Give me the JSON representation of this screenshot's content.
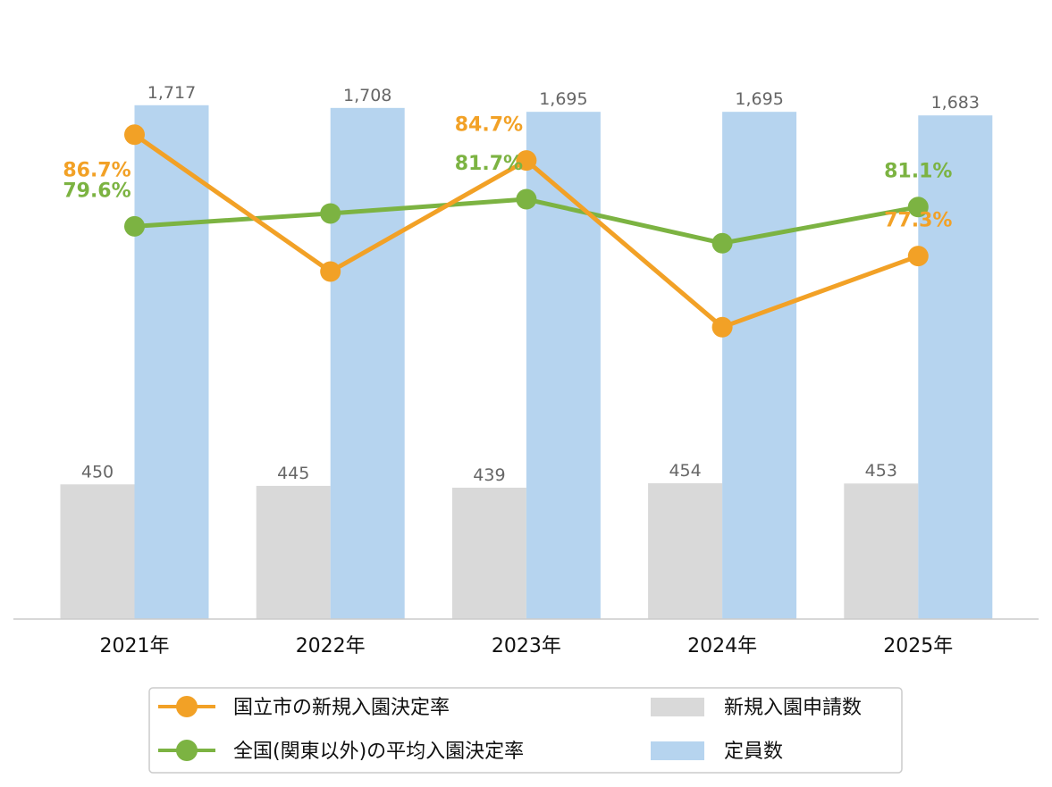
{
  "chart_data": {
    "type": "bar",
    "categories": [
      "2021年",
      "2022年",
      "2023年",
      "2024年",
      "2025年"
    ],
    "bar_series": [
      {
        "name": "新規入園申請数",
        "values": [
          450,
          445,
          439,
          454,
          453
        ],
        "labels": [
          "450",
          "445",
          "439",
          "454",
          "453"
        ],
        "color": "#d9d9d9"
      },
      {
        "name": "定員数",
        "values": [
          1717,
          1708,
          1695,
          1695,
          1683
        ],
        "labels": [
          "1,717",
          "1,708",
          "1,695",
          "1,695",
          "1,683"
        ],
        "color": "#b6d4ef"
      }
    ],
    "line_series": [
      {
        "name": "国立市の新規入園決定率",
        "values": [
          86.7,
          76.1,
          84.7,
          71.8,
          77.3
        ],
        "labels": [
          "86.7%",
          "",
          "84.7%",
          "",
          "77.3%"
        ],
        "color": "#f2a126"
      },
      {
        "name": "全国(関東以外)の平均入園決定率",
        "values": [
          79.6,
          80.6,
          81.7,
          78.3,
          81.1
        ],
        "labels": [
          "79.6%",
          "",
          "81.7%",
          "",
          "81.1%"
        ],
        "color": "#7cb342"
      }
    ],
    "bar_ylim": [
      0,
      1800
    ],
    "line_ylim": [
      49.2,
      90.9
    ],
    "grid": false,
    "legend_position": "bottom"
  }
}
